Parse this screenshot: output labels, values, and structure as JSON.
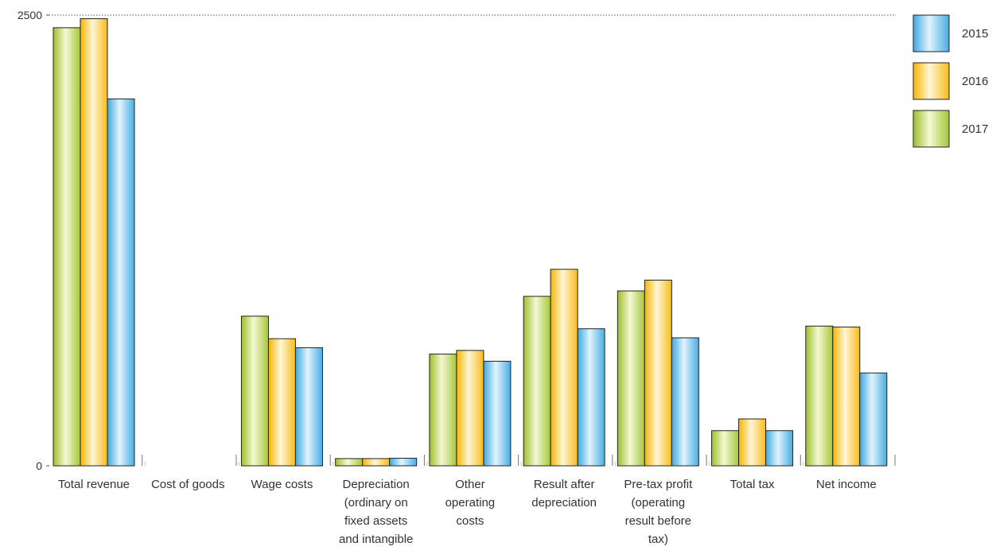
{
  "chart_data": {
    "type": "bar",
    "categories": [
      [
        "Total revenue"
      ],
      [
        "Cost of goods"
      ],
      [
        "Wage costs"
      ],
      [
        "Depreciation",
        "(ordinary on",
        "fixed assets",
        "and intangible"
      ],
      [
        "Other",
        "operating",
        "costs"
      ],
      [
        "Result after",
        "depreciation"
      ],
      [
        "Pre-tax profit",
        "(operating",
        "result before",
        "tax)"
      ],
      [
        "Total tax"
      ],
      [
        "Net income"
      ]
    ],
    "series": [
      {
        "name": "2017",
        "values": [
          2430,
          0,
          830,
          40,
          620,
          940,
          970,
          195,
          775
        ],
        "color": "#c6dc6a"
      },
      {
        "name": "2016",
        "values": [
          2480,
          0,
          705,
          40,
          640,
          1090,
          1030,
          260,
          770
        ],
        "color": "#fcd66e"
      },
      {
        "name": "2015",
        "values": [
          2035,
          0,
          655,
          42,
          580,
          760,
          710,
          195,
          515
        ],
        "color": "#7cc4ea"
      }
    ],
    "legend_order": [
      "2015",
      "2016",
      "2017"
    ],
    "ylim": [
      0,
      2500
    ],
    "y_ticks": [
      "0",
      "2500"
    ],
    "grid": false,
    "legend_position": "top-right"
  }
}
